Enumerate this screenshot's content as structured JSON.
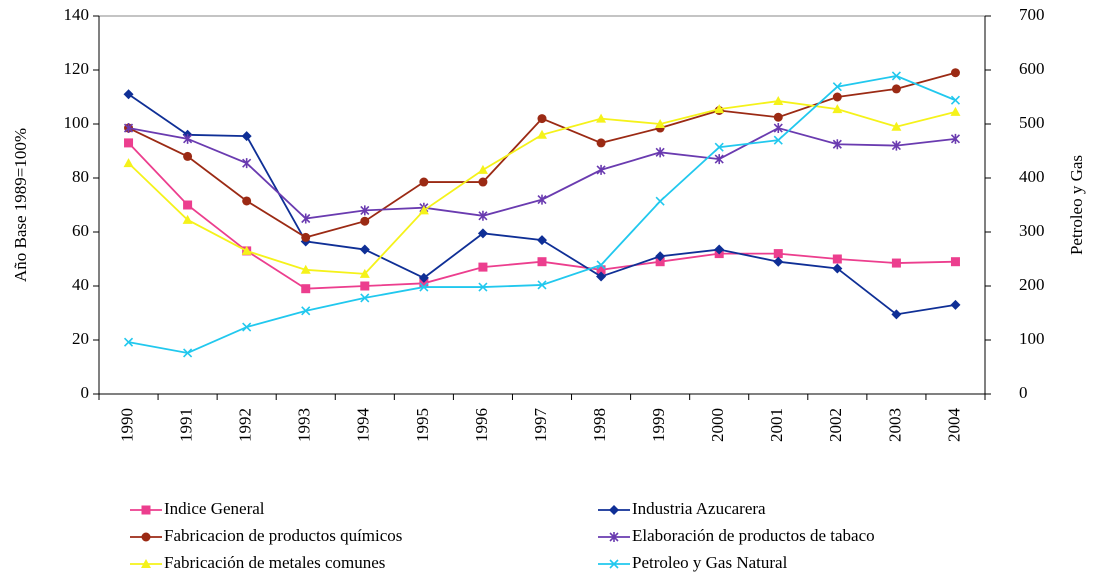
{
  "chart_data": {
    "type": "line",
    "y_label": "Año Base 1989=100%",
    "y2_label": "Petroleo y Gas",
    "categories": [
      "1990",
      "1991",
      "1992",
      "1993",
      "1994",
      "1995",
      "1996",
      "1997",
      "1998",
      "1999",
      "2000",
      "2001",
      "2002",
      "2003",
      "2004"
    ],
    "ylim": [
      0,
      140
    ],
    "yticks": [
      0,
      20,
      40,
      60,
      80,
      100,
      120,
      140
    ],
    "y2lim": [
      0,
      700
    ],
    "y2ticks": [
      0,
      100,
      200,
      300,
      400,
      500,
      600,
      700
    ],
    "series": [
      {
        "name": "Indice General",
        "color": "#ec3e8e",
        "marker": "square",
        "values": [
          93,
          70,
          53,
          39,
          40,
          41,
          47,
          49,
          46,
          49,
          52,
          52,
          50,
          48.5,
          49
        ]
      },
      {
        "name": "Industria Azucarera",
        "color": "#0f2f96",
        "marker": "diamond",
        "values": [
          111,
          96,
          95.5,
          56.5,
          53.5,
          43,
          59.5,
          57,
          43.5,
          51,
          53.5,
          49,
          46.5,
          29.5,
          33
        ]
      },
      {
        "name": "Fabricacion de productos químicos",
        "color": "#9b2a14",
        "marker": "circle",
        "values": [
          98.5,
          88,
          71.5,
          58,
          64,
          78.5,
          78.5,
          102,
          93,
          98.5,
          105,
          102.5,
          110,
          113,
          119
        ]
      },
      {
        "name": "Elaboración de productos de tabaco",
        "color": "#6a3bb0",
        "marker": "star",
        "values": [
          98.5,
          94.5,
          85.5,
          65,
          68,
          69,
          66,
          72,
          83,
          89.5,
          87,
          98.5,
          92.5,
          92,
          94.5
        ]
      },
      {
        "name": "Fabricación de metales comunes",
        "color": "#f5f21a",
        "marker": "triangle",
        "values": [
          85.5,
          64.5,
          53,
          46,
          44.5,
          68,
          83,
          96,
          102,
          100,
          105.5,
          108.5,
          105.5,
          99,
          104.5
        ]
      },
      {
        "name": "Petroleo y Gas Natural",
        "color": "#21c8ee",
        "marker": "x",
        "axis": "y2",
        "values": [
          96,
          76,
          124,
          154,
          178,
          198,
          198,
          202,
          239,
          357,
          457,
          470,
          569,
          589,
          544
        ]
      }
    ]
  }
}
